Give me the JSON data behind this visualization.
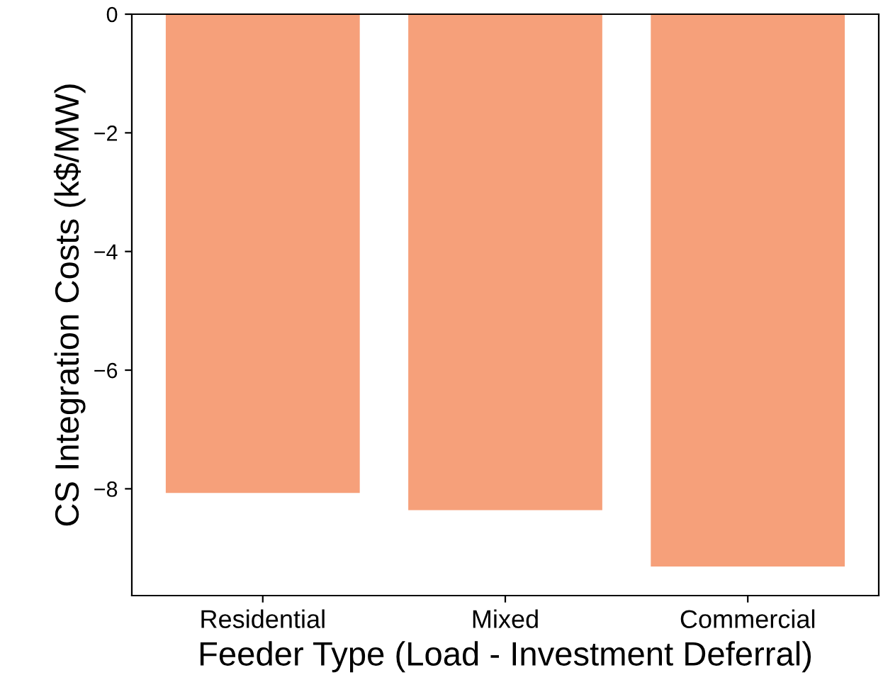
{
  "chart_data": {
    "type": "bar",
    "xlabel": "Feeder Type (Load - Investment Deferral)",
    "ylabel": "CS Integration Costs (k$/MW)",
    "categories": [
      "Residential",
      "Mixed",
      "Commercial"
    ],
    "values": [
      -8.07,
      -8.36,
      -9.31
    ],
    "color": "#f6a07a",
    "ylim": [
      -9.8,
      0
    ],
    "yticks": [
      {
        "value": -8,
        "label": "−8"
      },
      {
        "value": -6,
        "label": "−6"
      },
      {
        "value": -4,
        "label": "−4"
      },
      {
        "value": -2,
        "label": "−2"
      },
      0
    ],
    "grid": false,
    "legend": false
  }
}
